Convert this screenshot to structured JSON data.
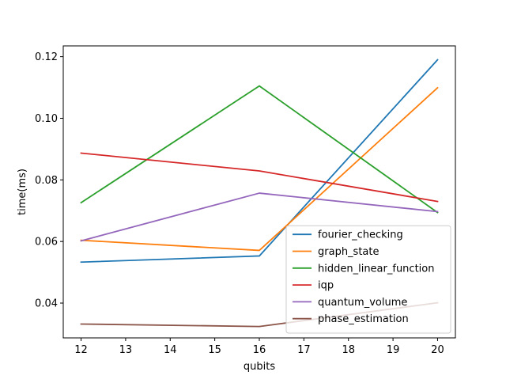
{
  "chart_data": {
    "type": "line",
    "title": "",
    "xlabel": "qubits",
    "ylabel": "time(ms)",
    "x": [
      12,
      16,
      20
    ],
    "xlim": [
      11.6,
      20.4
    ],
    "ylim": [
      0.0287,
      0.1235
    ],
    "xticks": [
      "12",
      "13",
      "14",
      "15",
      "16",
      "17",
      "18",
      "19",
      "20"
    ],
    "yticks": [
      "0.04",
      "0.06",
      "0.08",
      "0.10",
      "0.12"
    ],
    "grid": false,
    "legend_position": "lower-right",
    "series": [
      {
        "name": "fourier_checking",
        "color": "#1f77b4",
        "values": [
          0.0533,
          0.0553,
          0.119
        ]
      },
      {
        "name": "graph_state",
        "color": "#ff7f0e",
        "values": [
          0.0604,
          0.0571,
          0.1099
        ]
      },
      {
        "name": "hidden_linear_function",
        "color": "#2ca02c",
        "values": [
          0.0726,
          0.1105,
          0.0694
        ]
      },
      {
        "name": "iqp",
        "color": "#d62728",
        "values": [
          0.0887,
          0.0829,
          0.073
        ]
      },
      {
        "name": "quantum_volume",
        "color": "#9467bd",
        "values": [
          0.0602,
          0.0757,
          0.0697
        ]
      },
      {
        "name": "phase_estimation",
        "color": "#8c564b",
        "values": [
          0.0332,
          0.0324,
          0.0401
        ]
      }
    ]
  }
}
